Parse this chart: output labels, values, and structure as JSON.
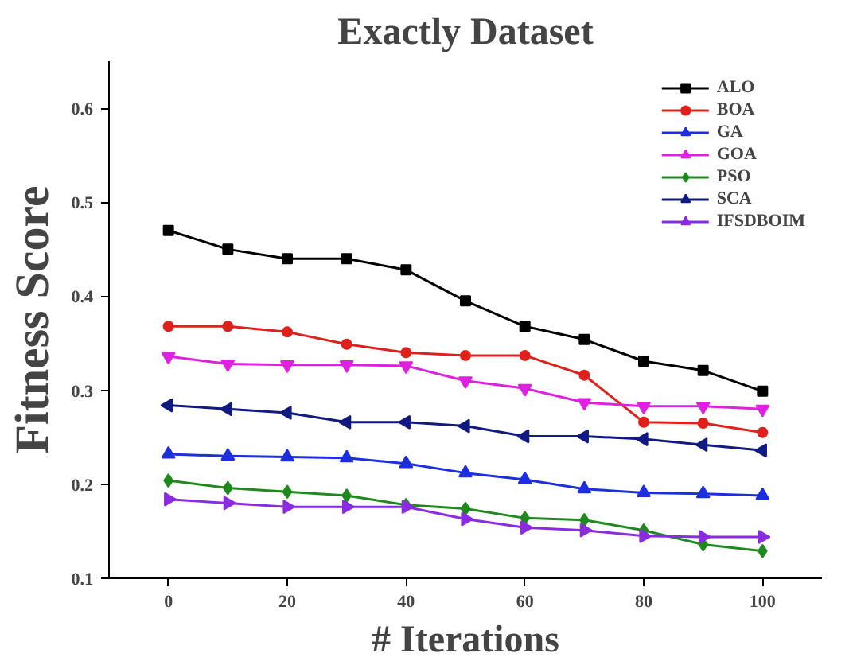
{
  "chart_data": {
    "type": "line",
    "title": "Exactly Dataset",
    "xlabel": "# Iterations",
    "ylabel": "Fitness Score",
    "x": [
      0,
      10,
      20,
      30,
      40,
      50,
      60,
      70,
      80,
      90,
      100
    ],
    "xlim": [
      -10,
      110
    ],
    "xticks": [
      0,
      20,
      40,
      60,
      80,
      100
    ],
    "ylim": [
      0.1,
      0.65
    ],
    "yticks": [
      0.1,
      0.2,
      0.3,
      0.4,
      0.5,
      0.6
    ],
    "grid": false,
    "legend": "top right",
    "line_style": "solid",
    "series": [
      {
        "name": "ALO",
        "color": "#000000",
        "marker": "square",
        "values": [
          0.47,
          0.45,
          0.44,
          0.44,
          0.428,
          0.395,
          0.368,
          0.354,
          0.331,
          0.321,
          0.299
        ]
      },
      {
        "name": "BOA",
        "color": "#e0201b",
        "marker": "circle",
        "values": [
          0.368,
          0.368,
          0.362,
          0.349,
          0.34,
          0.337,
          0.337,
          0.316,
          0.266,
          0.265,
          0.255
        ]
      },
      {
        "name": "GA",
        "color": "#1c2ee0",
        "marker": "triangle",
        "values": [
          0.232,
          0.23,
          0.229,
          0.228,
          0.222,
          0.212,
          0.205,
          0.195,
          0.191,
          0.19,
          0.188
        ]
      },
      {
        "name": "GOA",
        "color": "#e020e0",
        "marker": "triangle_down",
        "values": [
          0.336,
          0.328,
          0.327,
          0.327,
          0.326,
          0.31,
          0.302,
          0.287,
          0.283,
          0.283,
          0.28
        ]
      },
      {
        "name": "PSO",
        "color": "#1e8a1e",
        "marker": "diamond",
        "values": [
          0.204,
          0.196,
          0.192,
          0.188,
          0.178,
          0.174,
          0.164,
          0.162,
          0.151,
          0.136,
          0.129
        ]
      },
      {
        "name": "SCA",
        "color": "#101a80",
        "marker": "triangle_left",
        "values": [
          0.284,
          0.28,
          0.276,
          0.266,
          0.266,
          0.262,
          0.251,
          0.251,
          0.248,
          0.242,
          0.236
        ]
      },
      {
        "name": "IFSDBOIM",
        "color": "#8a2be2",
        "marker": "triangle_right",
        "values": [
          0.184,
          0.18,
          0.176,
          0.176,
          0.176,
          0.163,
          0.154,
          0.151,
          0.145,
          0.144,
          0.144
        ]
      }
    ]
  }
}
